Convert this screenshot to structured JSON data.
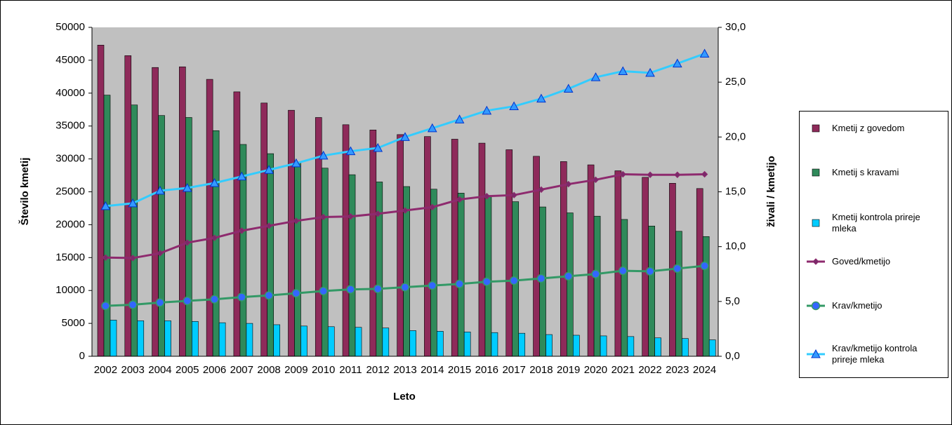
{
  "chart_data": {
    "type": "bar",
    "x_label": "Leto",
    "y_label": "Število kmetij",
    "y2_label": "živali / kmetijo",
    "categories": [
      "2002",
      "2003",
      "2004",
      "2005",
      "2006",
      "2007",
      "2008",
      "2009",
      "2010",
      "2011",
      "2012",
      "2013",
      "2014",
      "2015",
      "2016",
      "2017",
      "2018",
      "2019",
      "2020",
      "2021",
      "2022",
      "2023",
      "2024"
    ],
    "ylim": [
      0,
      50000
    ],
    "yticks": [
      0,
      5000,
      10000,
      15000,
      20000,
      25000,
      30000,
      35000,
      40000,
      45000,
      50000
    ],
    "y2lim": [
      0,
      30
    ],
    "y2ticks": [
      {
        "value": 0,
        "label": "0,0"
      },
      {
        "value": 5,
        "label": "5,0"
      },
      {
        "value": 10,
        "label": "10,0"
      },
      {
        "value": 15,
        "label": "15,0"
      },
      {
        "value": 20,
        "label": "20,0"
      },
      {
        "value": 25,
        "label": "25,0"
      },
      {
        "value": 30,
        "label": "30,0"
      }
    ],
    "plot_background": "#c0c0c0",
    "series": [
      {
        "name": "Kmetij z govedom",
        "type": "bar",
        "color": "#8e2a5a",
        "values": [
          47300,
          45700,
          43900,
          44000,
          42100,
          40200,
          38500,
          37400,
          36300,
          35200,
          34400,
          33700,
          33400,
          33000,
          32400,
          31400,
          30400,
          29600,
          29100,
          28200,
          27200,
          26300,
          25500
        ]
      },
      {
        "name": "Kmetij s kravami",
        "type": "bar",
        "color": "#2f8a5a",
        "values": [
          39700,
          38200,
          36600,
          36300,
          34300,
          32200,
          30800,
          29500,
          28600,
          27600,
          26500,
          25800,
          25400,
          24800,
          24300,
          23500,
          22700,
          21800,
          21300,
          20800,
          19800,
          19000,
          18200
        ]
      },
      {
        "name": "Kmetij kontrola prireje mleka",
        "type": "bar",
        "color": "#00ccff",
        "values": [
          5500,
          5400,
          5400,
          5300,
          5100,
          5000,
          4800,
          4600,
          4500,
          4400,
          4300,
          3900,
          3800,
          3700,
          3600,
          3500,
          3300,
          3200,
          3100,
          3000,
          2800,
          2700,
          2500
        ]
      },
      {
        "name": "Goved/kmetijo",
        "type": "line",
        "axis": "y2",
        "marker": "diamond",
        "color": "#8e2a6e",
        "values": [
          9.0,
          8.96,
          9.4,
          10.36,
          10.8,
          11.45,
          11.9,
          12.35,
          12.7,
          12.75,
          13.0,
          13.3,
          13.6,
          14.3,
          14.6,
          14.7,
          15.2,
          15.7,
          16.1,
          16.6,
          16.55,
          16.55,
          16.6
        ]
      },
      {
        "name": "Krav/kmetijo",
        "type": "line",
        "axis": "y2",
        "marker": "circle",
        "color": "#339966",
        "values": [
          4.6,
          4.7,
          4.9,
          5.05,
          5.2,
          5.4,
          5.55,
          5.75,
          5.95,
          6.1,
          6.15,
          6.3,
          6.45,
          6.6,
          6.8,
          6.9,
          7.1,
          7.3,
          7.5,
          7.8,
          7.75,
          8.0,
          8.25
        ]
      },
      {
        "name": "Krav/kmetijo kontrola prireje mleka",
        "type": "line",
        "axis": "y2",
        "marker": "triangle",
        "color": "#33ccff",
        "values": [
          13.7,
          13.95,
          15.1,
          15.35,
          15.8,
          16.4,
          17.0,
          17.6,
          18.3,
          18.7,
          19.0,
          20.0,
          20.8,
          21.6,
          22.4,
          22.8,
          23.5,
          24.4,
          25.45,
          26.0,
          25.85,
          26.7,
          27.6
        ]
      }
    ]
  }
}
